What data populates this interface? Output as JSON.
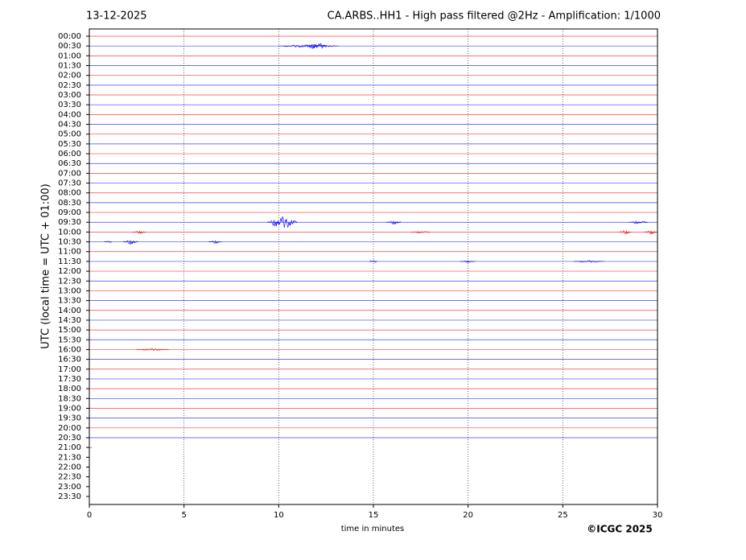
{
  "chart_data": {
    "type": "helicorder",
    "date": "13-12-2025",
    "title": "CA.ARBS..HH1 - High pass filtered @2Hz - Amplification: 1/1000",
    "xlabel": "time in minutes",
    "ylabel": "UTC (local time = UTC + 01:00)",
    "copyright": "©ICGC 2025",
    "xlim": [
      0,
      30
    ],
    "xticks": [
      0,
      5,
      10,
      15,
      20,
      25,
      30
    ],
    "rows": [
      "00:00",
      "00:30",
      "01:00",
      "01:30",
      "02:00",
      "02:30",
      "03:00",
      "03:30",
      "04:00",
      "04:30",
      "05:00",
      "05:30",
      "06:00",
      "06:30",
      "07:00",
      "07:30",
      "08:00",
      "08:30",
      "09:00",
      "09:30",
      "10:00",
      "10:30",
      "11:00",
      "11:30",
      "12:00",
      "12:30",
      "13:00",
      "13:30",
      "14:00",
      "14:30",
      "15:00",
      "15:30",
      "16:00",
      "16:30",
      "17:00",
      "17:30",
      "18:00",
      "18:30",
      "19:00",
      "19:30",
      "20:00",
      "20:30",
      "21:00",
      "21:30",
      "22:00",
      "22:30",
      "23:00",
      "23:30"
    ],
    "trace_colors": [
      "#ff0000",
      "#0000ff"
    ],
    "grid": true,
    "traces": [
      {
        "events": []
      },
      {
        "events": [
          [
            10,
            13.2,
            0.15
          ],
          [
            11.4,
            12.6,
            0.3
          ]
        ]
      },
      {
        "events": []
      },
      {
        "events": []
      },
      {
        "events": []
      },
      {
        "events": []
      },
      {
        "events": []
      },
      {
        "events": []
      },
      {
        "events": []
      },
      {
        "events": []
      },
      {
        "events": []
      },
      {
        "events": []
      },
      {
        "events": []
      },
      {
        "events": []
      },
      {
        "events": []
      },
      {
        "events": []
      },
      {
        "events": []
      },
      {
        "events": []
      },
      {
        "events": []
      },
      {
        "events": [
          [
            9.4,
            11,
            0.6
          ],
          [
            15.7,
            16.5,
            0.2
          ],
          [
            28.5,
            29.5,
            0.15
          ]
        ]
      },
      {
        "events": [
          [
            2.3,
            3,
            0.15
          ],
          [
            17,
            18,
            0.1
          ],
          [
            28,
            28.6,
            0.2
          ],
          [
            29.3,
            30,
            0.2
          ]
        ]
      },
      {
        "events": [
          [
            0.8,
            1.2,
            0.1
          ],
          [
            1.8,
            2.6,
            0.25
          ],
          [
            6.3,
            7,
            0.15
          ]
        ]
      },
      {
        "events": []
      },
      {
        "events": [
          [
            14.8,
            15.2,
            0.15
          ],
          [
            19.6,
            20.4,
            0.1
          ],
          [
            25.6,
            27.2,
            0.1
          ]
        ]
      },
      {
        "events": []
      },
      {
        "events": []
      },
      {
        "events": []
      },
      {
        "events": []
      },
      {
        "events": []
      },
      {
        "events": []
      },
      {
        "events": []
      },
      {
        "events": []
      },
      {
        "events": [
          [
            2.5,
            4.2,
            0.1
          ]
        ]
      },
      {
        "events": []
      },
      {
        "events": []
      },
      {
        "events": []
      },
      {
        "events": []
      },
      {
        "events": []
      },
      {
        "events": []
      },
      {
        "events": []
      },
      {
        "events": []
      },
      {
        "events": []
      },
      {
        "end": 0.15,
        "events": []
      }
    ]
  }
}
